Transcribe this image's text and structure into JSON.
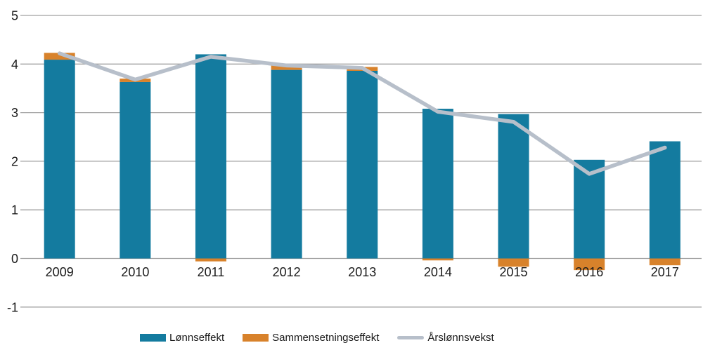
{
  "chart_data": {
    "type": "bar+line",
    "title": "",
    "categories": [
      "2009",
      "2010",
      "2011",
      "2012",
      "2013",
      "2014",
      "2015",
      "2016",
      "2017"
    ],
    "series": [
      {
        "name": "Lønnseffekt",
        "type": "bar",
        "color": "#147b9f",
        "values": [
          4.09,
          3.63,
          4.2,
          3.88,
          3.86,
          3.08,
          2.97,
          2.03,
          2.41
        ]
      },
      {
        "name": "Sammensetningseffekt",
        "type": "bar",
        "stacked_on_first": true,
        "color": "#d8822b",
        "values": [
          0.14,
          0.07,
          -0.06,
          0.09,
          0.08,
          -0.04,
          -0.17,
          -0.24,
          -0.14
        ]
      },
      {
        "name": "Årslønnsvekst",
        "type": "line",
        "color": "#b7bfca",
        "values": [
          4.22,
          3.68,
          4.15,
          3.97,
          3.92,
          3.02,
          2.81,
          1.74,
          2.28
        ]
      }
    ],
    "yticks": [
      5,
      4,
      3,
      2,
      1,
      0,
      -1
    ],
    "ylim": [
      -1,
      5
    ],
    "xlabel": "",
    "ylabel": "",
    "grid": true,
    "legend_position": "bottom",
    "gridline_color": "#a0a0a0",
    "text_color": "#1a1a1a"
  }
}
